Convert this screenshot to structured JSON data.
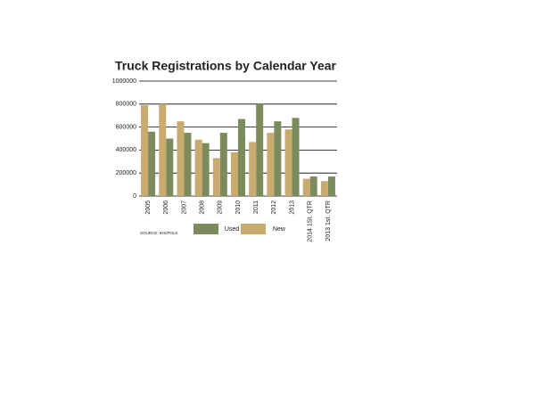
{
  "chart_data": {
    "type": "bar",
    "title": "Truck Registrations by Calendar Year",
    "categories": [
      "2005",
      "2006",
      "2007",
      "2008",
      "2009",
      "2010",
      "2011",
      "2012",
      "2013",
      "2014 1St. QTR",
      "2013 1st. QTR"
    ],
    "series": [
      {
        "name": "Used",
        "color": "#7b8b5b",
        "values": [
          560000,
          500000,
          550000,
          460000,
          550000,
          670000,
          800000,
          650000,
          680000,
          170000,
          170000
        ]
      },
      {
        "name": "New",
        "color": "#c9ab70",
        "values": [
          790000,
          800000,
          650000,
          490000,
          330000,
          380000,
          470000,
          550000,
          580000,
          150000,
          130000
        ]
      }
    ],
    "ylim": [
      0,
      1000000
    ],
    "yticks": [
      0,
      200000,
      400000,
      600000,
      800000,
      1000000
    ],
    "grid": true,
    "source": "SOURCE: IHS/POLK"
  }
}
